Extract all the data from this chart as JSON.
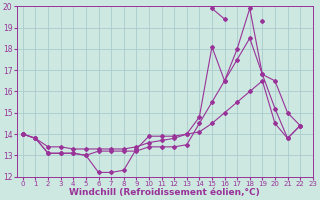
{
  "background_color": "#cce8e0",
  "grid_color": "#aacccc",
  "line_color": "#993399",
  "marker": "D",
  "marker_size": 2,
  "xlabel": "Windchill (Refroidissement éolien,°C)",
  "xlabel_fontsize": 6.5,
  "xlabel_bold": true,
  "xtick_fontsize": 5,
  "ytick_fontsize": 5.5,
  "ylim": [
    12,
    20
  ],
  "xlim": [
    -0.5,
    23
  ],
  "yticks": [
    12,
    13,
    14,
    15,
    16,
    17,
    18,
    19,
    20
  ],
  "xticks": [
    0,
    1,
    2,
    3,
    4,
    5,
    6,
    7,
    8,
    9,
    10,
    11,
    12,
    13,
    14,
    15,
    16,
    17,
    18,
    19,
    20,
    21,
    22,
    23
  ],
  "series": [
    [
      14.0,
      13.8,
      13.1,
      13.1,
      13.1,
      13.0,
      12.2,
      12.2,
      12.3,
      13.3,
      13.9,
      13.9,
      13.9,
      14.0,
      14.8,
      18.1,
      16.5,
      18.0,
      19.9,
      16.8,
      15.2,
      13.8,
      14.4,
      null
    ],
    [
      14.0,
      13.8,
      13.1,
      13.1,
      13.1,
      13.0,
      13.2,
      13.2,
      13.2,
      13.2,
      13.4,
      13.4,
      13.4,
      13.5,
      14.5,
      15.5,
      16.5,
      17.5,
      18.5,
      16.8,
      16.5,
      15.0,
      14.4,
      null
    ],
    [
      14.0,
      13.8,
      13.4,
      13.4,
      13.3,
      13.3,
      13.3,
      13.3,
      13.3,
      13.4,
      13.6,
      13.7,
      13.8,
      14.0,
      14.1,
      14.5,
      15.0,
      15.5,
      16.0,
      16.5,
      14.5,
      13.8,
      14.4,
      null
    ],
    [
      14.0,
      null,
      null,
      null,
      null,
      null,
      null,
      null,
      null,
      null,
      null,
      null,
      null,
      null,
      null,
      19.9,
      19.4,
      null,
      null,
      19.3,
      null,
      null,
      null,
      null
    ]
  ]
}
